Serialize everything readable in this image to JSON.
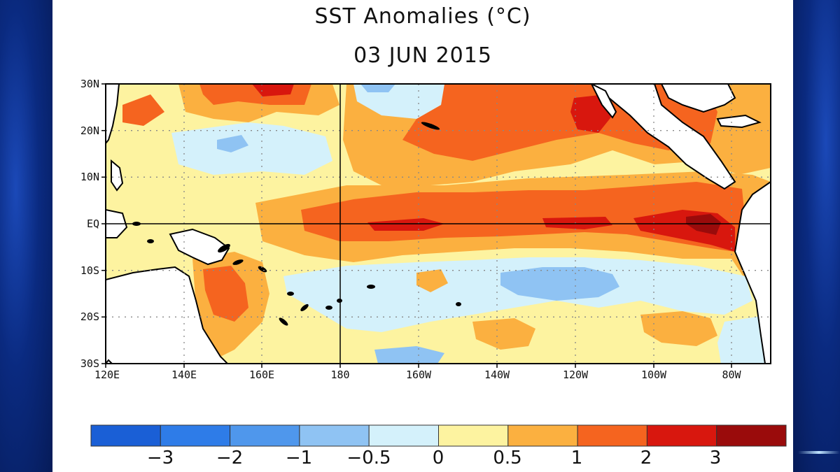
{
  "title": "SST Anomalies (°C)",
  "date": "03 JUN 2015",
  "lat_labels": [
    "30N",
    "20N",
    "10N",
    "EQ",
    "10S",
    "20S",
    "30S"
  ],
  "lon_labels": [
    "120E",
    "140E",
    "160E",
    "180",
    "160W",
    "140W",
    "120W",
    "100W",
    "80W"
  ],
  "colorbar": {
    "colors": [
      "#1a5fd6",
      "#2e7ce8",
      "#4f97ec",
      "#8fc3f3",
      "#d4f1fb",
      "#fdf3a0",
      "#fbb040",
      "#f5641f",
      "#d8170e",
      "#9a0b0b"
    ],
    "labels": [
      "−3",
      "−2",
      "−1",
      "−0.5",
      "0",
      "0.5",
      "1",
      "2",
      "3"
    ]
  },
  "colors": {
    "land": "#ffffff",
    "coast": "#000000",
    "background_blue": "#0b2e86"
  }
}
